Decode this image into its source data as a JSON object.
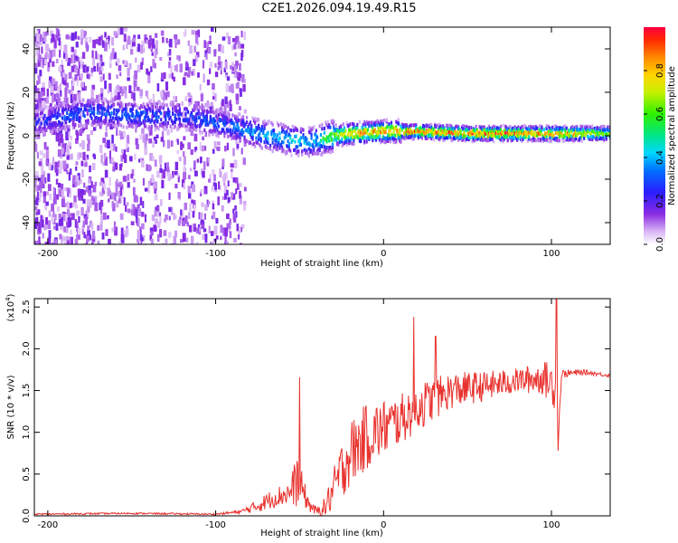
{
  "title": "C2E1.2026.094.19.49.R15",
  "colors": {
    "snr_line": "#e8322e",
    "axis": "#000000"
  },
  "chart_data": [
    {
      "type": "heatmap",
      "xlabel": "Height of straight line (km)",
      "ylabel": "Frequency (Hz)",
      "xlim": [
        -208,
        135
      ],
      "ylim": [
        -50,
        50
      ],
      "x_ticks": [
        -200,
        -100,
        0,
        100
      ],
      "y_ticks": [
        -40,
        -20,
        0,
        20,
        40
      ],
      "colorbar": {
        "label": "Normalized spectral amplitude",
        "range": [
          0,
          1
        ],
        "ticks": [
          0.0,
          0.2,
          0.4,
          0.6,
          0.8
        ],
        "tick_labels": [
          "0.0",
          "0.2",
          "0.4",
          "0.6",
          "0.8"
        ]
      },
      "ridge": {
        "x": [
          -208,
          -190,
          -175,
          -160,
          -140,
          -120,
          -100,
          -85,
          -70,
          -55,
          -45,
          -40,
          -30,
          -20,
          0,
          20,
          50,
          80,
          110,
          135
        ],
        "freq": [
          6,
          9,
          11,
          10,
          9,
          9,
          6,
          3,
          0,
          -2,
          -3,
          -2,
          0,
          1,
          2,
          2,
          1,
          1,
          1,
          1
        ],
        "peak_amplitude": [
          0.3,
          0.35,
          0.35,
          0.35,
          0.35,
          0.32,
          0.35,
          0.4,
          0.45,
          0.5,
          0.45,
          0.5,
          0.75,
          0.9,
          0.95,
          0.98,
          1.0,
          1.0,
          0.95,
          0.7
        ]
      }
    },
    {
      "type": "line",
      "xlabel": "Height of straight line (km)",
      "ylabel": "SNR (10 * v/v)",
      "y_multiplier": "(x10",
      "y_multiplier_exp": "4",
      "xlim": [
        -208,
        135
      ],
      "ylim": [
        0,
        2.6
      ],
      "x_ticks": [
        -200,
        -100,
        0,
        100
      ],
      "y_ticks": [
        0.0,
        0.5,
        1.0,
        1.5,
        2.0,
        2.5
      ],
      "y_tick_labels": [
        "0.0",
        "0.5",
        "1.0",
        "1.5",
        "2.0",
        "2.5"
      ],
      "envelope": {
        "x": [
          -208,
          -150,
          -100,
          -85,
          -75,
          -65,
          -55,
          -52,
          -49,
          -45,
          -40,
          -35,
          -30,
          -25,
          -20,
          -10,
          0,
          10,
          20,
          30,
          40,
          60,
          80,
          95,
          103,
          104,
          106,
          120,
          135
        ],
        "base": [
          0.02,
          0.03,
          0.02,
          0.05,
          0.12,
          0.22,
          0.28,
          0.45,
          0.35,
          0.15,
          0.05,
          0.1,
          0.3,
          0.55,
          0.75,
          0.95,
          1.05,
          1.15,
          1.3,
          1.4,
          1.5,
          1.55,
          1.62,
          1.65,
          1.55,
          0.9,
          1.7,
          1.72,
          1.68
        ],
        "noise": [
          0.01,
          0.01,
          0.01,
          0.02,
          0.08,
          0.12,
          0.15,
          0.35,
          0.2,
          0.1,
          0.05,
          0.12,
          0.25,
          0.35,
          0.4,
          0.4,
          0.35,
          0.3,
          0.3,
          0.25,
          0.22,
          0.18,
          0.15,
          0.2,
          0.3,
          0.1,
          0.05,
          0.03,
          0.02
        ]
      },
      "peaks": [
        {
          "x": -50,
          "y": 1.66
        },
        {
          "x": 18,
          "y": 2.38
        },
        {
          "x": 31,
          "y": 2.15
        },
        {
          "x": 103,
          "y": 2.62
        },
        {
          "x": 104,
          "y": 0.78
        }
      ]
    }
  ]
}
